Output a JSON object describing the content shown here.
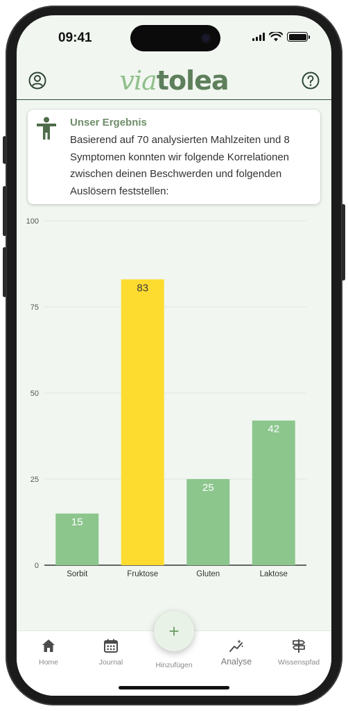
{
  "status_bar": {
    "time": "09:41"
  },
  "header": {
    "logo_via": "via",
    "logo_tolea": "tolea"
  },
  "result_card": {
    "title": "Unser Ergebnis",
    "text": "Basierend auf 70 analysierten Mahlzeiten und 8 Symptomen konnten wir folgende Korrelationen zwischen deinen Beschwerden und folgenden Auslösern feststellen:"
  },
  "chart_data": {
    "type": "bar",
    "categories": [
      "Sorbit",
      "Fruktose",
      "Gluten",
      "Laktose"
    ],
    "values": [
      15,
      83,
      25,
      42
    ],
    "bar_colors": [
      "#8cc68d",
      "#fedb2f",
      "#8cc68d",
      "#8cc68d"
    ],
    "ylim": [
      0,
      100
    ],
    "yticks": [
      0,
      25,
      50,
      75,
      100
    ],
    "grid": true,
    "title": "",
    "xlabel": "",
    "ylabel": ""
  },
  "tabs": [
    {
      "id": "home",
      "label": "Home",
      "icon": "home-icon"
    },
    {
      "id": "journal",
      "label": "Journal",
      "icon": "calendar-icon"
    },
    {
      "id": "add",
      "label": "Hinzufügen",
      "icon": "plus-icon"
    },
    {
      "id": "analyse",
      "label": "Analyse",
      "icon": "analytics-icon",
      "active": true
    },
    {
      "id": "wissenspfad",
      "label": "Wissenspfad",
      "icon": "signpost-icon"
    }
  ],
  "fab": {
    "symbol": "+"
  },
  "colors": {
    "accent_green": "#6e8e69",
    "header_rule": "#2f4734",
    "background": "#f1f6f0",
    "highlight_bar": "#fedb2f",
    "bar": "#8cc68d"
  }
}
